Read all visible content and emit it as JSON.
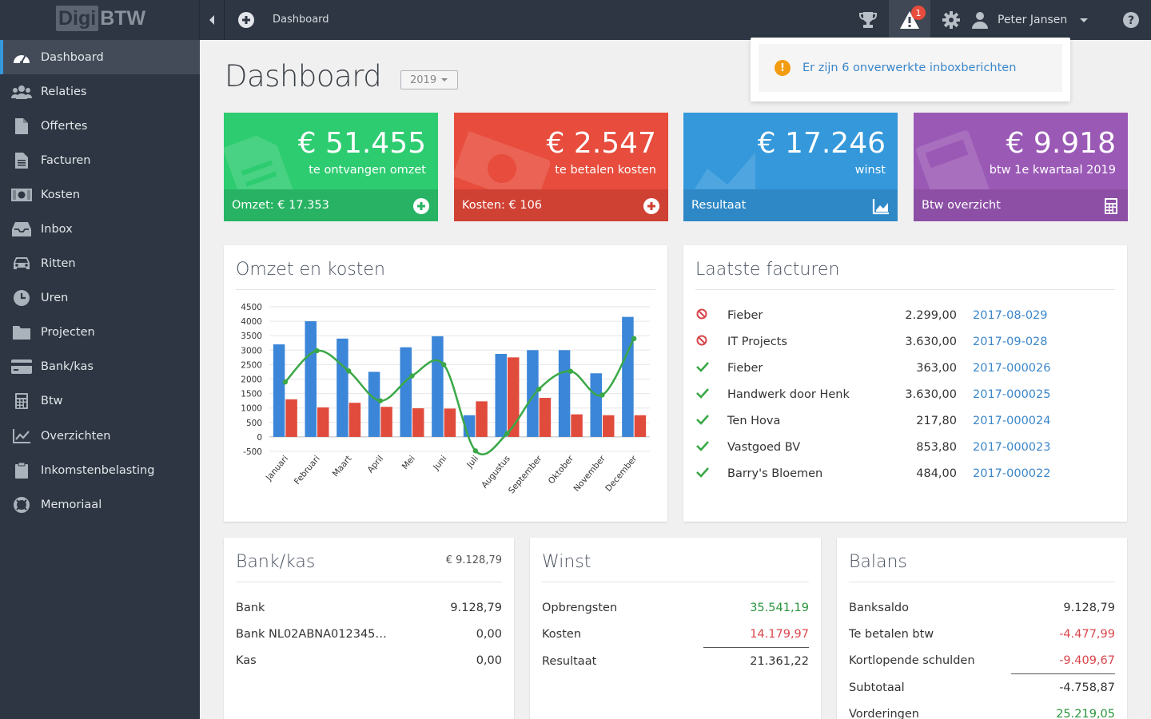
{
  "app": {
    "logo_part1": "Digi",
    "logo_part2": "BTW"
  },
  "topbar": {
    "breadcrumb": "Dashboard",
    "alert_count": "1",
    "user_name": "Peter Jansen"
  },
  "sidebar": {
    "items": [
      {
        "label": "Dashboard",
        "icon": "dashboard-icon"
      },
      {
        "label": "Relaties",
        "icon": "users-icon"
      },
      {
        "label": "Offertes",
        "icon": "file-icon"
      },
      {
        "label": "Facturen",
        "icon": "file-text-icon"
      },
      {
        "label": "Kosten",
        "icon": "money-icon"
      },
      {
        "label": "Inbox",
        "icon": "inbox-icon"
      },
      {
        "label": "Ritten",
        "icon": "car-icon"
      },
      {
        "label": "Uren",
        "icon": "clock-icon"
      },
      {
        "label": "Projecten",
        "icon": "folder-icon"
      },
      {
        "label": "Bank/kas",
        "icon": "credit-card-icon"
      },
      {
        "label": "Btw",
        "icon": "calculator-icon"
      },
      {
        "label": "Overzichten",
        "icon": "line-chart-icon"
      },
      {
        "label": "Inkomstenbelasting",
        "icon": "clipboard-icon"
      },
      {
        "label": "Memoriaal",
        "icon": "life-ring-icon"
      }
    ]
  },
  "page": {
    "title": "Dashboard",
    "year": "2019"
  },
  "tiles": [
    {
      "amount": "€ 51.455",
      "subtitle": "te ontvangen omzet",
      "footer": "Omzet: € 17.353",
      "color": "#2ecc71",
      "footer_color": "#27b363",
      "icon": "plus-circle-icon"
    },
    {
      "amount": "€ 2.547",
      "subtitle": "te betalen kosten",
      "footer": "Kosten: € 106",
      "color": "#e74c3c",
      "footer_color": "#cf4133",
      "icon": "plus-circle-icon"
    },
    {
      "amount": "€ 17.246",
      "subtitle": "winst",
      "footer": "Resultaat",
      "color": "#3498db",
      "footer_color": "#2e88c6",
      "icon": "area-chart-icon"
    },
    {
      "amount": "€ 9.918",
      "subtitle": "btw 1e kwartaal 2019",
      "footer": "Btw overzicht",
      "color": "#9b59b6",
      "footer_color": "#8c4fa5",
      "icon": "calculator-icon"
    }
  ],
  "notification": {
    "text": "Er zijn 6 onverwerkte inboxberichten",
    "icon": "exclamation-circle-icon"
  },
  "chart_panel": {
    "title": "Omzet en kosten"
  },
  "chart_data": {
    "type": "bar",
    "title": "Omzet en kosten",
    "categories": [
      "Januari",
      "Februari",
      "Maart",
      "April",
      "Mei",
      "Juni",
      "Juli",
      "Augustus",
      "September",
      "Oktober",
      "November",
      "December"
    ],
    "series": [
      {
        "values": [
          3200,
          4000,
          3400,
          2250,
          3100,
          3480,
          750,
          2870,
          3000,
          3000,
          2200,
          4150
        ],
        "color": "#3b86d8",
        "kind": "bar"
      },
      {
        "values": [
          1300,
          1020,
          1180,
          1040,
          990,
          980,
          1230,
          2750,
          1350,
          780,
          750,
          750
        ],
        "color": "#e04b3c",
        "kind": "bar"
      },
      {
        "values": [
          1900,
          2980,
          2280,
          1250,
          2110,
          2500,
          -480,
          120,
          1650,
          2270,
          1450,
          3400
        ],
        "color": "#3aa847",
        "kind": "line"
      }
    ],
    "ylim": [
      -500,
      4500
    ],
    "yticks": [
      4500,
      4000,
      3500,
      3000,
      2500,
      2000,
      1500,
      1000,
      500,
      0,
      -500
    ],
    "grid": true
  },
  "invoices": {
    "title": "Laatste facturen",
    "rows": [
      {
        "status": "ban-icon",
        "name": "Fieber",
        "amount": "2.299,00",
        "number": "2017-08-029"
      },
      {
        "status": "ban-icon",
        "name": "IT Projects",
        "amount": "3.630,00",
        "number": "2017-09-028"
      },
      {
        "status": "check-icon",
        "name": "Fieber",
        "amount": "363,00",
        "number": "2017-000026"
      },
      {
        "status": "check-icon",
        "name": "Handwerk door Henk",
        "amount": "3.630,00",
        "number": "2017-000025"
      },
      {
        "status": "check-icon",
        "name": "Ten Hova",
        "amount": "217,80",
        "number": "2017-000024"
      },
      {
        "status": "check-icon",
        "name": "Vastgoed BV",
        "amount": "853,80",
        "number": "2017-000023"
      },
      {
        "status": "check-icon",
        "name": "Barry's Bloemen",
        "amount": "484,00",
        "number": "2017-000022"
      }
    ]
  },
  "bank": {
    "title": "Bank/kas",
    "total": "€ 9.128,79",
    "rows": [
      {
        "label": "Bank",
        "value": "9.128,79"
      },
      {
        "label": "Bank NL02ABNA012345…",
        "value": "0,00"
      },
      {
        "label": "Kas",
        "value": "0,00"
      }
    ]
  },
  "profit": {
    "title": "Winst",
    "rows": [
      {
        "label": "Opbrengsten",
        "value": "35.541,19"
      },
      {
        "label": "Kosten",
        "value": "14.179,97"
      },
      {
        "label": "Resultaat",
        "value": "21.361,22"
      }
    ]
  },
  "balance": {
    "title": "Balans",
    "rows": [
      {
        "label": "Banksaldo",
        "value": "9.128,79"
      },
      {
        "label": "Te betalen btw",
        "value": "-4.477,99"
      },
      {
        "label": "Kortlopende schulden",
        "value": "-9.409,67"
      },
      {
        "label": "Subtotaal",
        "value": "-4.758,87"
      },
      {
        "label": "Vorderingen",
        "value": "25.219,05"
      }
    ]
  }
}
